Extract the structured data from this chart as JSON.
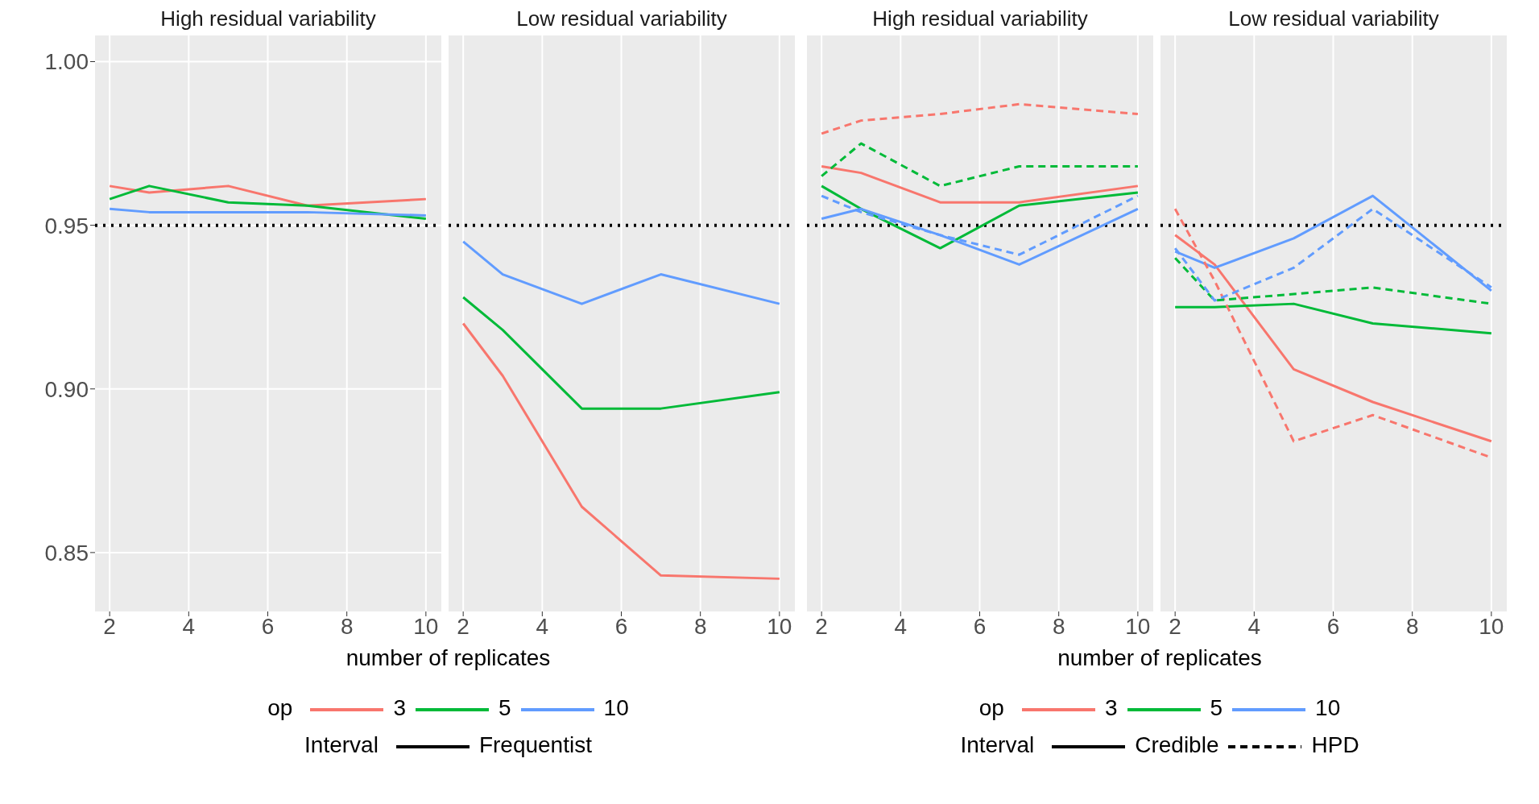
{
  "chart_data": [
    {
      "type": "line",
      "title": "High residual variability",
      "xlabel": "number of replicates",
      "legend": "bottom",
      "legend_title": "op",
      "annotations": [
        "Interval",
        "Frequentist"
      ],
      "x": [
        2,
        3,
        5,
        7,
        10
      ],
      "xlim": [
        1.63,
        10.39
      ],
      "xticks": [
        2,
        4,
        6,
        8,
        10
      ],
      "ylim": [
        0.832,
        1.008
      ],
      "yticks": [
        0.85,
        {
          "value": 0.9,
          "label": "0.90"
        },
        0.95,
        {
          "value": 1,
          "label": "1.00"
        }
      ],
      "grid": true,
      "line_style": "solid",
      "ref_lines": [
        {
          "axis": "y",
          "value": 0.95,
          "color": "#000000",
          "line_style": "dotted"
        }
      ],
      "series": [
        {
          "name": "3",
          "color": "#f8766d",
          "values": [
            0.962,
            0.96,
            0.962,
            0.956,
            0.958
          ]
        },
        {
          "name": "5",
          "color": "#00ba38",
          "values": [
            0.958,
            0.962,
            0.957,
            0.956,
            0.952
          ]
        },
        {
          "name": "10",
          "color": "#619cff",
          "values": [
            0.955,
            0.954,
            0.954,
            0.954,
            0.953
          ]
        }
      ]
    },
    {
      "type": "line",
      "title": "Low residual variability",
      "legend": "bottom",
      "x": [
        2,
        3,
        5,
        7,
        10
      ],
      "xlim": [
        1.63,
        10.39
      ],
      "xticks": [
        2,
        4,
        6,
        8,
        10
      ],
      "ylim": [
        0.832,
        1.008
      ],
      "yticks": [
        0.85,
        0.9,
        0.95,
        1
      ],
      "grid": true,
      "tick_labels": "x",
      "line_style": "solid",
      "ref_lines": [
        {
          "axis": "y",
          "value": 0.95,
          "color": "#000000",
          "line_style": "dotted"
        }
      ],
      "series": [
        {
          "name": "3",
          "color": "#f8766d",
          "values": [
            0.92,
            0.904,
            0.864,
            0.843,
            0.842
          ]
        },
        {
          "name": "5",
          "color": "#00ba38",
          "values": [
            0.928,
            0.918,
            0.894,
            0.894,
            0.899
          ]
        },
        {
          "name": "10",
          "color": "#619cff",
          "values": [
            0.945,
            0.935,
            0.926,
            0.935,
            0.926
          ]
        }
      ]
    },
    {
      "type": "line",
      "title": "High residual variability",
      "xlabel": "number of replicates",
      "legend": "bottom",
      "legend_title": "op",
      "annotations": [
        "Interval",
        "Credible",
        "HPD"
      ],
      "x": [
        2,
        3,
        5,
        7,
        10
      ],
      "xlim": [
        1.63,
        10.39
      ],
      "xticks": [
        2,
        4,
        6,
        8,
        10
      ],
      "ylim": [
        0.832,
        1.008
      ],
      "yticks": [
        0.85,
        0.9,
        0.95,
        1
      ],
      "grid": true,
      "tick_labels": "x",
      "line_style": "solid",
      "ref_lines": [
        {
          "axis": "y",
          "value": 0.95,
          "color": "#000000",
          "line_style": "dotted"
        }
      ],
      "series": [
        {
          "name": "3",
          "color": "#f8766d",
          "values": [
            0.968,
            0.966,
            0.957,
            0.957,
            0.962
          ]
        },
        {
          "name": "5",
          "color": "#00ba38",
          "values": [
            0.962,
            0.955,
            0.943,
            0.956,
            0.96
          ]
        },
        {
          "name": "10",
          "color": "#619cff",
          "values": [
            0.952,
            0.955,
            0.947,
            0.938,
            0.955
          ]
        },
        {
          "color": "#f8766d",
          "line_style": "dashed",
          "values": [
            0.978,
            0.982,
            0.984,
            0.987,
            0.984
          ]
        },
        {
          "color": "#00ba38",
          "line_style": "dashed",
          "values": [
            0.965,
            0.975,
            0.962,
            0.968,
            0.968
          ]
        },
        {
          "color": "#619cff",
          "line_style": "dashed",
          "values": [
            0.959,
            0.954,
            0.947,
            0.941,
            0.959
          ]
        }
      ]
    },
    {
      "type": "line",
      "title": "Low residual variability",
      "legend": "bottom",
      "x": [
        2,
        3,
        5,
        7,
        10
      ],
      "xlim": [
        1.63,
        10.39
      ],
      "xticks": [
        2,
        4,
        6,
        8,
        10
      ],
      "ylim": [
        0.832,
        1.008
      ],
      "yticks": [
        0.85,
        0.9,
        0.95,
        1
      ],
      "grid": true,
      "tick_labels": "x",
      "line_style": "solid",
      "ref_lines": [
        {
          "axis": "y",
          "value": 0.95,
          "color": "#000000",
          "line_style": "dotted"
        }
      ],
      "series": [
        {
          "name": "3",
          "color": "#f8766d",
          "values": [
            0.947,
            0.938,
            0.906,
            0.896,
            0.884
          ]
        },
        {
          "name": "5",
          "color": "#00ba38",
          "values": [
            0.925,
            0.925,
            0.926,
            0.92,
            0.917
          ]
        },
        {
          "name": "10",
          "color": "#619cff",
          "values": [
            0.942,
            0.937,
            0.946,
            0.959,
            0.93
          ]
        },
        {
          "color": "#f8766d",
          "line_style": "dashed",
          "values": [
            0.955,
            0.933,
            0.884,
            0.892,
            0.879
          ]
        },
        {
          "color": "#00ba38",
          "line_style": "dashed",
          "values": [
            0.94,
            0.927,
            0.929,
            0.931,
            0.926
          ]
        },
        {
          "color": "#619cff",
          "line_style": "dashed",
          "values": [
            0.943,
            0.927,
            0.937,
            0.955,
            0.931
          ]
        }
      ]
    }
  ]
}
